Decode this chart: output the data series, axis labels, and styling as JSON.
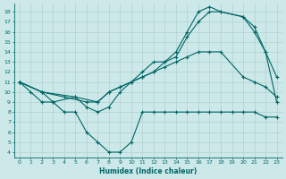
{
  "xlabel": "Humidex (Indice chaleur)",
  "bg_color": "#cce8e8",
  "line_color": "#006666",
  "grid_color": "#aacccc",
  "xlim": [
    -0.5,
    23.5
  ],
  "ylim": [
    3.5,
    18.8
  ],
  "xticks": [
    0,
    1,
    2,
    3,
    4,
    5,
    6,
    7,
    8,
    9,
    10,
    11,
    12,
    13,
    14,
    15,
    16,
    17,
    18,
    19,
    20,
    21,
    22,
    23
  ],
  "yticks": [
    4,
    5,
    6,
    7,
    8,
    9,
    10,
    11,
    12,
    13,
    14,
    15,
    16,
    17,
    18
  ],
  "line1_x": [
    0,
    1,
    2,
    3,
    4,
    5,
    6,
    7,
    8,
    9,
    10,
    11,
    12,
    13,
    14,
    15,
    16,
    17,
    18,
    19,
    20,
    21,
    22,
    23
  ],
  "line1_y": [
    11,
    10,
    9,
    9,
    8,
    8,
    6,
    5,
    4,
    4,
    5,
    8,
    8,
    8,
    8,
    8,
    8,
    8,
    8,
    8,
    8,
    8,
    7.5,
    7.5
  ],
  "line2_x": [
    0,
    2,
    4,
    6,
    7,
    8,
    9,
    10,
    11,
    12,
    13,
    14,
    15,
    16,
    17,
    18,
    20,
    21,
    22,
    23
  ],
  "line2_y": [
    11,
    10,
    9.5,
    9,
    9,
    10,
    10.5,
    11,
    11.5,
    12,
    12.5,
    13,
    13.5,
    14,
    14,
    14,
    11.5,
    11,
    10.5,
    9.5
  ],
  "line3_x": [
    0,
    2,
    5,
    7,
    8,
    9,
    10,
    11,
    12,
    13,
    14,
    15,
    16,
    17,
    18,
    20,
    21,
    22,
    23
  ],
  "line3_y": [
    11,
    10,
    9.5,
    9,
    10,
    10.5,
    11,
    11.5,
    12,
    13,
    13.5,
    15.5,
    17,
    18,
    18,
    17.5,
    16,
    14,
    11.5
  ],
  "line4_x": [
    0,
    2,
    3,
    5,
    6,
    7,
    8,
    9,
    10,
    11,
    12,
    13,
    14,
    15,
    16,
    17,
    18,
    20,
    21,
    22,
    23
  ],
  "line4_y": [
    11,
    10,
    9,
    9.5,
    8.5,
    8,
    8.5,
    10,
    11,
    12,
    13,
    13,
    14,
    16,
    18,
    18.5,
    18,
    17.5,
    16.5,
    14,
    9
  ]
}
